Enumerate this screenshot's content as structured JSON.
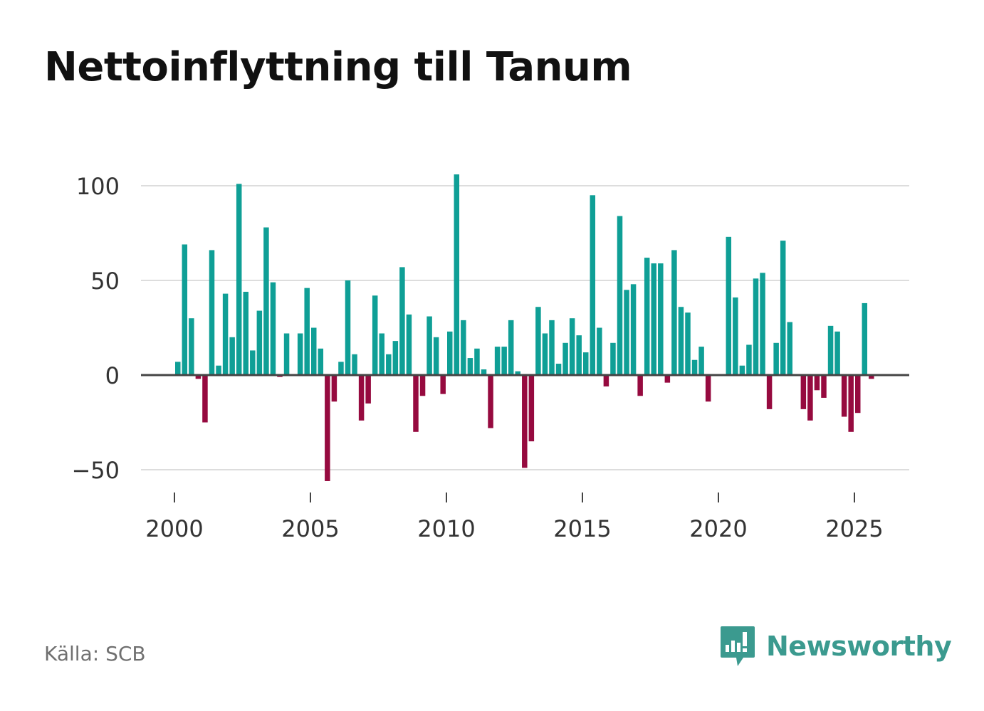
{
  "title": "Nettoinflyttning till Tanum",
  "source": "Källa: SCB",
  "brand": {
    "name": "Newsworthy",
    "icon": "newsworthy-logo-icon"
  },
  "colors": {
    "positive": "#0f9f96",
    "negative": "#960a3f",
    "grid": "#dddddd",
    "zero_line": "#444444",
    "brand": "#3b9a8f"
  },
  "chart_data": {
    "type": "bar",
    "title": "Nettoinflyttning till Tanum",
    "xlabel": "",
    "ylabel": "",
    "x_start": 2000.0,
    "x_step": 0.25,
    "values": [
      7,
      69,
      30,
      -2,
      -25,
      66,
      5,
      43,
      20,
      101,
      44,
      13,
      34,
      78,
      49,
      -1,
      22,
      0,
      22,
      46,
      25,
      14,
      -56,
      -14,
      7,
      50,
      11,
      -24,
      -15,
      42,
      22,
      11,
      18,
      57,
      32,
      -30,
      -11,
      31,
      20,
      -10,
      23,
      106,
      29,
      9,
      14,
      3,
      -28,
      15,
      15,
      29,
      2,
      -49,
      -35,
      36,
      22,
      29,
      6,
      17,
      30,
      21,
      12,
      95,
      25,
      -6,
      17,
      84,
      45,
      48,
      -11,
      62,
      59,
      59,
      -4,
      66,
      36,
      33,
      8,
      15,
      -14,
      0,
      0,
      73,
      41,
      5,
      16,
      51,
      54,
      -18,
      17,
      71,
      28,
      0,
      -18,
      -24,
      -8,
      -12,
      26,
      23,
      -22,
      -30,
      -20,
      38,
      -2
    ],
    "xlim": [
      1999.0,
      2027.0
    ],
    "ylim": [
      -67,
      110
    ],
    "yticks": [
      -50,
      0,
      50,
      100
    ],
    "ytick_labels": [
      "−50",
      "0",
      "50",
      "100"
    ],
    "xticks": [
      2000,
      2005,
      2010,
      2015,
      2020,
      2025
    ],
    "xtick_labels": [
      "2000",
      "2005",
      "2010",
      "2015",
      "2020",
      "2025"
    ],
    "grid": true,
    "legend": "none"
  }
}
